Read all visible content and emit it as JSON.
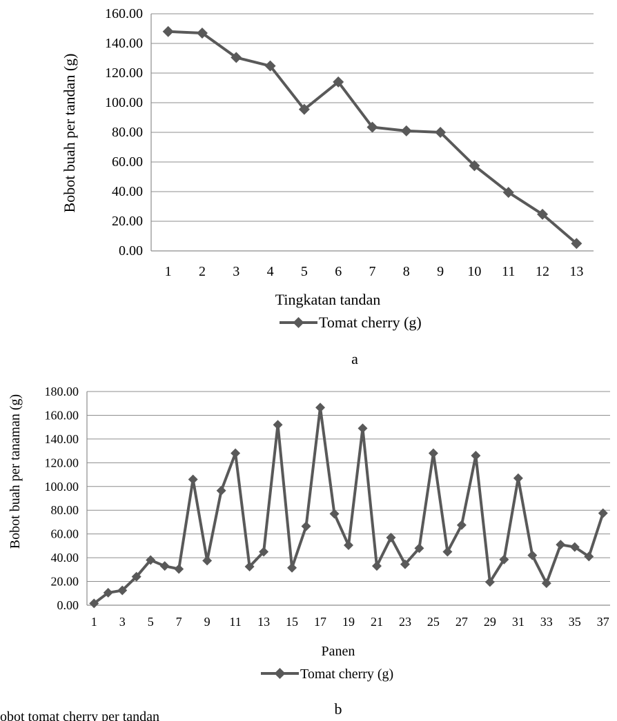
{
  "chart_data": [
    {
      "type": "line",
      "panel_label": "a",
      "xlabel": "Tingkatan tandan",
      "ylabel": "Bobot buah per tandan (g)",
      "ylim": [
        0,
        160
      ],
      "y_ticks": [
        "0.00",
        "20.00",
        "40.00",
        "60.00",
        "80.00",
        "100.00",
        "120.00",
        "140.00",
        "160.00"
      ],
      "categories": [
        "1",
        "2",
        "3",
        "4",
        "5",
        "6",
        "7",
        "8",
        "9",
        "10",
        "11",
        "12",
        "13"
      ],
      "series": [
        {
          "name": "Tomat cherry (g)",
          "values": [
            148,
            147,
            130.5,
            124.8,
            95.5,
            114,
            83.5,
            81,
            80,
            57.5,
            39.5,
            24.7,
            5
          ]
        }
      ],
      "grid": true,
      "legend": "bottom",
      "color": "#595959"
    },
    {
      "type": "line",
      "panel_label": "b",
      "xlabel": "Panen",
      "ylabel": "Bobot buah per tanaman (g)",
      "ylim": [
        0,
        180
      ],
      "y_ticks": [
        "0.00",
        "20.00",
        "40.00",
        "60.00",
        "80.00",
        "100.00",
        "120.00",
        "140.00",
        "160.00",
        "180.00"
      ],
      "x_tick_labels": [
        "1",
        "3",
        "5",
        "7",
        "9",
        "11",
        "13",
        "15",
        "17",
        "19",
        "21",
        "23",
        "25",
        "27",
        "29",
        "31",
        "33",
        "35",
        "37"
      ],
      "x": [
        1,
        2,
        3,
        4,
        5,
        6,
        7,
        8,
        9,
        10,
        11,
        12,
        13,
        14,
        15,
        16,
        17,
        18,
        19,
        20,
        21,
        22,
        23,
        24,
        25,
        26,
        27,
        28,
        29,
        30,
        31,
        32,
        33,
        34,
        35,
        36,
        37
      ],
      "series": [
        {
          "name": "Tomat cherry (g)",
          "values": [
            1.5,
            10.5,
            12.5,
            24,
            38,
            33,
            30.5,
            106,
            37.5,
            96.5,
            128,
            32.5,
            45,
            152,
            31.5,
            66.5,
            166.5,
            77,
            50.5,
            149,
            33,
            57,
            34.5,
            48,
            128,
            45,
            67.5,
            126,
            19.5,
            38.5,
            107,
            42,
            18.5,
            51,
            49,
            41,
            77.5
          ]
        }
      ],
      "grid": true,
      "legend": "bottom",
      "color": "#595959"
    }
  ],
  "caption_fragment": "obot tomat cherry per tandan"
}
